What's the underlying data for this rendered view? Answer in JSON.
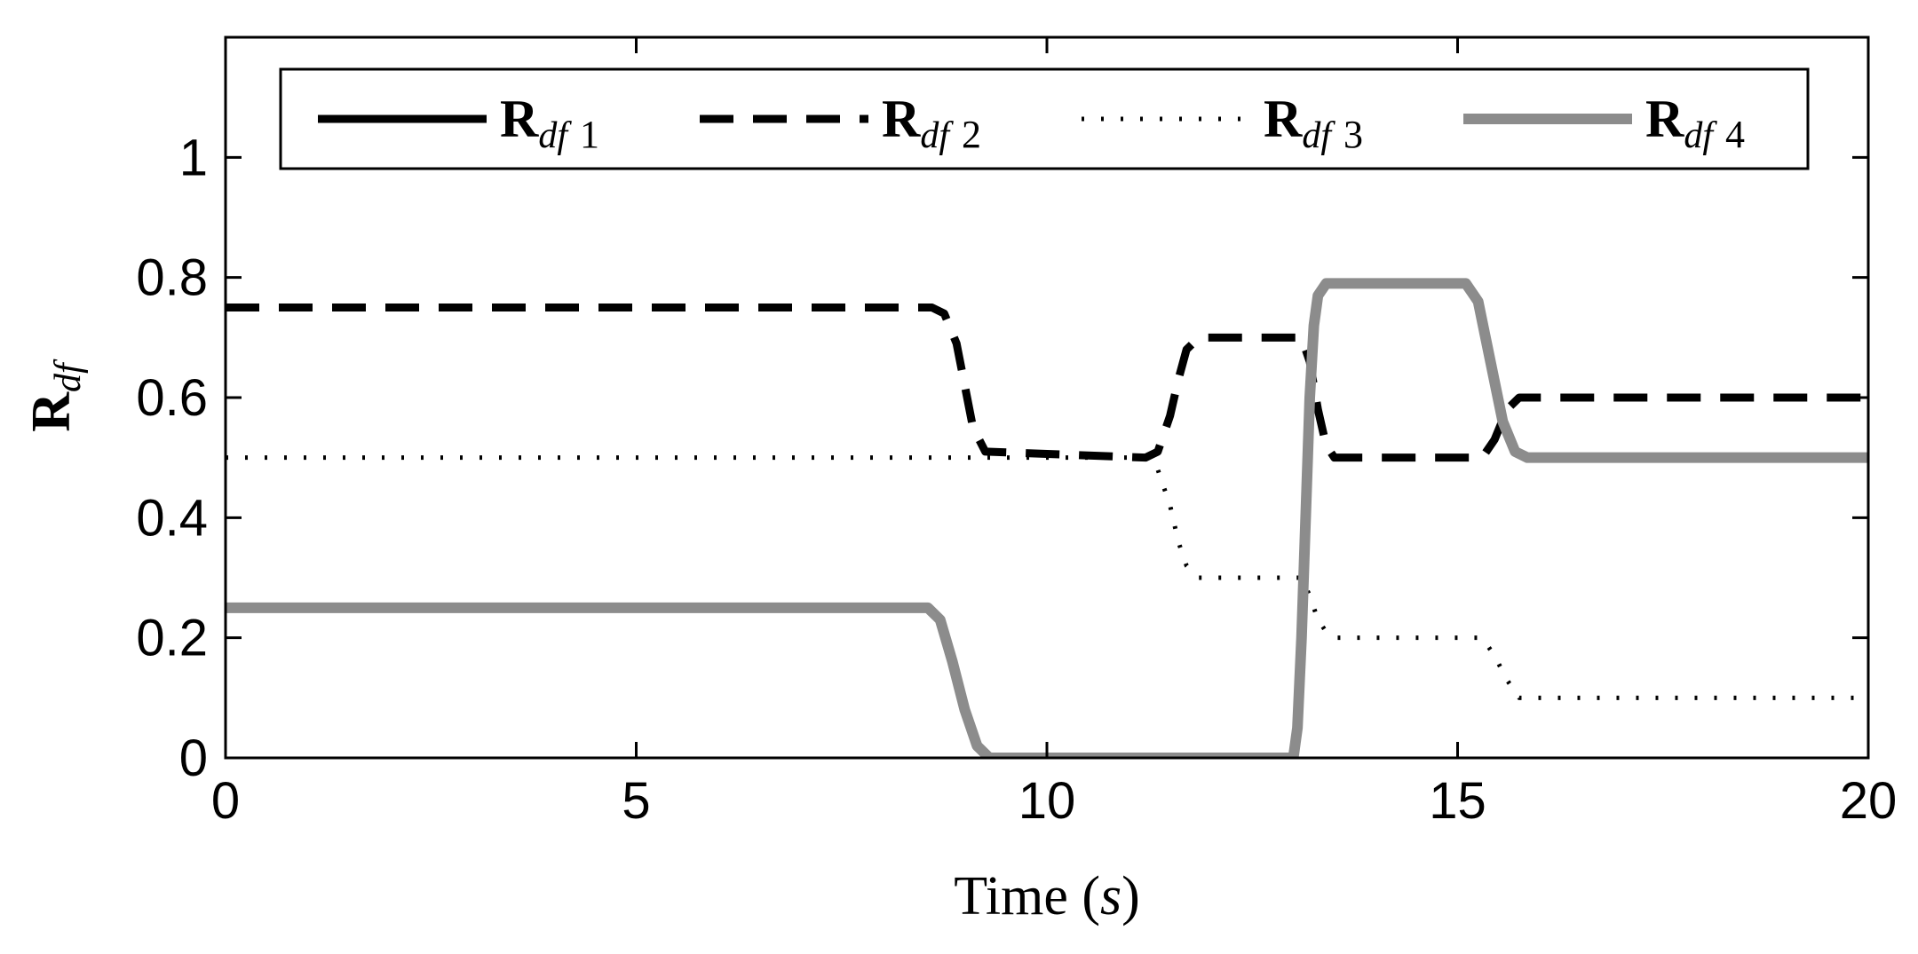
{
  "chart_data": {
    "type": "line",
    "title": "",
    "xlabel": "Time (s)",
    "xlabel_parts": {
      "prefix": "Time (",
      "var": "s",
      "suffix": ")"
    },
    "ylabel": "R_df",
    "ylabel_parts": {
      "base": "R",
      "sub": "df"
    },
    "xlim": [
      0,
      20
    ],
    "ylim": [
      0,
      1.2
    ],
    "xticks": [
      0,
      5,
      10,
      15,
      20
    ],
    "xtick_labels": [
      "0",
      "5",
      "10",
      "15",
      "20"
    ],
    "yticks": [
      0,
      0.2,
      0.4,
      0.6,
      0.8,
      1
    ],
    "ytick_labels": [
      "0",
      "0.2",
      "0.4",
      "0.6",
      "0.8",
      "1"
    ],
    "grid": false,
    "legend_position": "top",
    "series": [
      {
        "name": "R_df 1",
        "label_base": "R",
        "label_sub": "df",
        "label_index": "1",
        "color": "#000000",
        "style": "solid",
        "x": [
          0,
          20
        ],
        "y": [
          0,
          0
        ],
        "visible_in_plot": false
      },
      {
        "name": "R_df 2",
        "label_base": "R",
        "label_sub": "df",
        "label_index": "2",
        "color": "#000000",
        "style": "dashed",
        "x": [
          0,
          8.6,
          8.75,
          8.9,
          9.0,
          9.1,
          9.25,
          11.2,
          11.35,
          11.5,
          11.6,
          11.7,
          11.85,
          13.1,
          13.2,
          13.3,
          13.4,
          13.5,
          15.3,
          15.45,
          15.6,
          15.75,
          20
        ],
        "y": [
          0.75,
          0.75,
          0.74,
          0.69,
          0.62,
          0.55,
          0.51,
          0.5,
          0.51,
          0.57,
          0.63,
          0.68,
          0.7,
          0.7,
          0.66,
          0.58,
          0.52,
          0.5,
          0.5,
          0.53,
          0.58,
          0.6,
          0.6
        ],
        "visible_in_plot": true
      },
      {
        "name": "R_df 3",
        "label_base": "R",
        "label_sub": "df",
        "label_index": "3",
        "color": "#000000",
        "style": "dotted",
        "x": [
          0,
          11.2,
          11.35,
          11.5,
          11.6,
          11.7,
          11.85,
          13.1,
          13.2,
          13.3,
          13.4,
          13.5,
          15.3,
          15.45,
          15.6,
          15.75,
          20
        ],
        "y": [
          0.5,
          0.5,
          0.48,
          0.42,
          0.36,
          0.32,
          0.3,
          0.3,
          0.27,
          0.23,
          0.21,
          0.2,
          0.2,
          0.17,
          0.13,
          0.1,
          0.1
        ],
        "visible_in_plot": true
      },
      {
        "name": "R_df 4",
        "label_base": "R",
        "label_sub": "df",
        "label_index": "4",
        "color": "#8c8c8c",
        "style": "solid",
        "x": [
          0,
          8.55,
          8.7,
          8.85,
          9.0,
          9.15,
          9.3,
          13.0,
          13.05,
          13.1,
          13.15,
          13.2,
          13.25,
          13.3,
          13.4,
          13.5,
          15.1,
          15.25,
          15.4,
          15.55,
          15.7,
          15.85,
          20
        ],
        "y": [
          0.25,
          0.25,
          0.23,
          0.16,
          0.08,
          0.02,
          0.0,
          0.0,
          0.05,
          0.2,
          0.4,
          0.6,
          0.72,
          0.77,
          0.79,
          0.79,
          0.79,
          0.76,
          0.66,
          0.56,
          0.51,
          0.5,
          0.5
        ],
        "visible_in_plot": true
      }
    ]
  }
}
